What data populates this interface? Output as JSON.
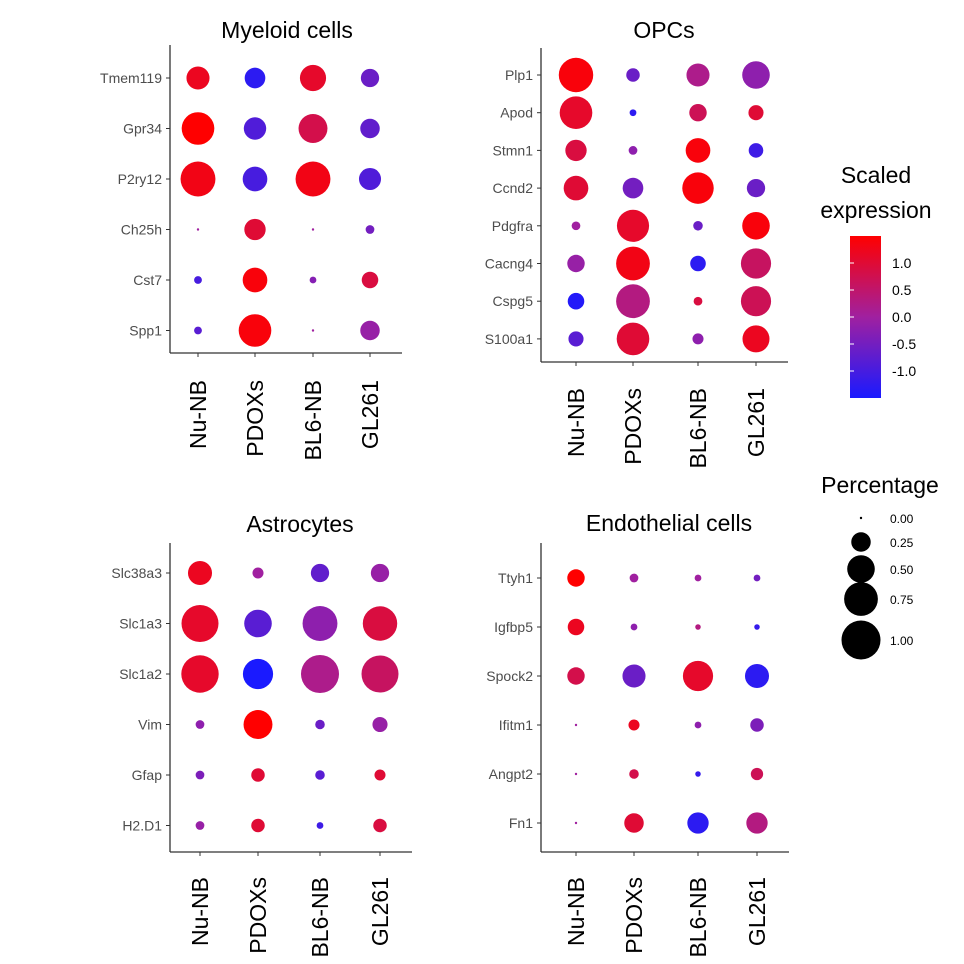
{
  "chart_data": [
    {
      "type": "dotplot",
      "title": "Myeloid cells",
      "categories": [
        "Nu-NB",
        "PDOXs",
        "BL6-NB",
        "GL261"
      ],
      "genes": [
        "Tmem119",
        "Gpr34",
        "P2ry12",
        "Ch25h",
        "Cst7",
        "Spp1"
      ],
      "pct": [
        [
          0.35,
          0.28,
          0.45,
          0.22
        ],
        [
          0.7,
          0.33,
          0.55,
          0.25
        ],
        [
          0.8,
          0.4,
          0.8,
          0.32
        ],
        [
          0.0,
          0.3,
          0.0,
          0.05
        ],
        [
          0.04,
          0.4,
          0.03,
          0.18
        ],
        [
          0.04,
          0.7,
          0.0,
          0.25
        ]
      ],
      "scaled": [
        [
          1.2,
          -1.3,
          1.1,
          -0.6
        ],
        [
          1.5,
          -0.9,
          0.8,
          -0.7
        ],
        [
          1.3,
          -1.0,
          1.3,
          -0.9
        ],
        [
          0.0,
          1.0,
          0.0,
          -0.5
        ],
        [
          -1.0,
          1.4,
          -0.3,
          0.9
        ],
        [
          -0.8,
          1.4,
          0.0,
          -0.1
        ]
      ]
    },
    {
      "type": "dotplot",
      "title": "OPCs",
      "categories": [
        "Nu-NB",
        "PDOXs",
        "BL6-NB",
        "GL261"
      ],
      "genes": [
        "Plp1",
        "Apod",
        "Stmn1",
        "Ccnd2",
        "Pdgfra",
        "Cacng4",
        "Cspg5",
        "S100a1"
      ],
      "pct": [
        [
          0.78,
          0.12,
          0.35,
          0.5
        ],
        [
          0.7,
          0.03,
          0.2,
          0.15
        ],
        [
          0.3,
          0.05,
          0.4,
          0.14
        ],
        [
          0.4,
          0.28,
          0.65,
          0.22
        ],
        [
          0.05,
          0.68,
          0.06,
          0.5
        ],
        [
          0.2,
          0.75,
          0.16,
          0.6
        ],
        [
          0.18,
          0.75,
          0.05,
          0.6
        ],
        [
          0.15,
          0.7,
          0.08,
          0.48
        ]
      ],
      "scaled": [
        [
          1.4,
          -0.6,
          0.2,
          -0.2
        ],
        [
          1.1,
          -1.3,
          0.7,
          1.0
        ],
        [
          0.9,
          -0.2,
          1.4,
          -1.1
        ],
        [
          1.0,
          -0.5,
          1.4,
          -0.6
        ],
        [
          0.0,
          1.1,
          -0.6,
          1.4
        ],
        [
          -0.1,
          1.3,
          -1.3,
          0.6
        ],
        [
          -1.4,
          0.3,
          0.9,
          0.7
        ],
        [
          -0.8,
          1.0,
          -0.2,
          1.2
        ]
      ]
    },
    {
      "type": "dotplot",
      "title": "Astrocytes",
      "categories": [
        "Nu-NB",
        "PDOXs",
        "BL6-NB",
        "GL261"
      ],
      "genes": [
        "Slc38a3",
        "Slc1a3",
        "Slc1a2",
        "Vim",
        "Gfap",
        "H2.D1"
      ],
      "pct": [
        [
          0.38,
          0.08,
          0.22,
          0.22
        ],
        [
          0.9,
          0.5,
          0.8,
          0.78
        ],
        [
          0.92,
          0.6,
          0.95,
          0.9
        ],
        [
          0.05,
          0.55,
          0.06,
          0.15
        ],
        [
          0.05,
          0.12,
          0.06,
          0.08
        ],
        [
          0.05,
          0.12,
          0.03,
          0.12
        ]
      ],
      "scaled": [
        [
          1.2,
          0.0,
          -0.7,
          -0.1
        ],
        [
          1.1,
          -0.8,
          -0.2,
          0.9
        ],
        [
          1.1,
          -1.5,
          0.2,
          0.6
        ],
        [
          -0.2,
          1.5,
          -0.6,
          -0.1
        ],
        [
          -0.4,
          1.0,
          -0.8,
          1.0
        ],
        [
          -0.1,
          1.0,
          -1.1,
          0.9
        ]
      ]
    },
    {
      "type": "dotplot",
      "title": "Endothelial cells",
      "categories": [
        "Nu-NB",
        "PDOXs",
        "BL6-NB",
        "GL261"
      ],
      "genes": [
        "Ttyh1",
        "Igfbp5",
        "Spock2",
        "Ifitm1",
        "Angpt2",
        "Fn1"
      ],
      "pct": [
        [
          0.2,
          0.05,
          0.03,
          0.03
        ],
        [
          0.18,
          0.03,
          0.02,
          0.02
        ],
        [
          0.2,
          0.35,
          0.6,
          0.38
        ],
        [
          0.0,
          0.08,
          0.03,
          0.12
        ],
        [
          0.0,
          0.06,
          0.02,
          0.1
        ],
        [
          0.0,
          0.25,
          0.3,
          0.3
        ]
      ],
      "scaled": [
        [
          1.5,
          0.0,
          0.0,
          -0.5
        ],
        [
          1.2,
          -0.2,
          0.3,
          -1.2
        ],
        [
          0.8,
          -0.6,
          1.1,
          -1.3
        ],
        [
          0.0,
          1.2,
          -0.2,
          -0.4
        ],
        [
          0.0,
          0.8,
          -1.2,
          0.7
        ],
        [
          0.0,
          1.0,
          -1.3,
          0.3
        ]
      ]
    }
  ],
  "legend": {
    "color_title_line1": "Scaled",
    "color_title_line2": "expression",
    "color_ticks": [
      "1.0",
      "0.5",
      "0.0",
      "-0.5",
      "-1.0"
    ],
    "color_tick_values": [
      1.0,
      0.5,
      0.0,
      -0.5,
      -1.0
    ],
    "color_range": [
      -1.5,
      1.5
    ],
    "colors": {
      "low": "#1a1aff",
      "mid": "#a020a0",
      "high": "#ff0000"
    },
    "size_title": "Percentage",
    "size_labels": [
      "0.00",
      "0.25",
      "0.50",
      "0.75",
      "1.00"
    ],
    "size_values": [
      0.0,
      0.25,
      0.5,
      0.75,
      1.0
    ]
  }
}
